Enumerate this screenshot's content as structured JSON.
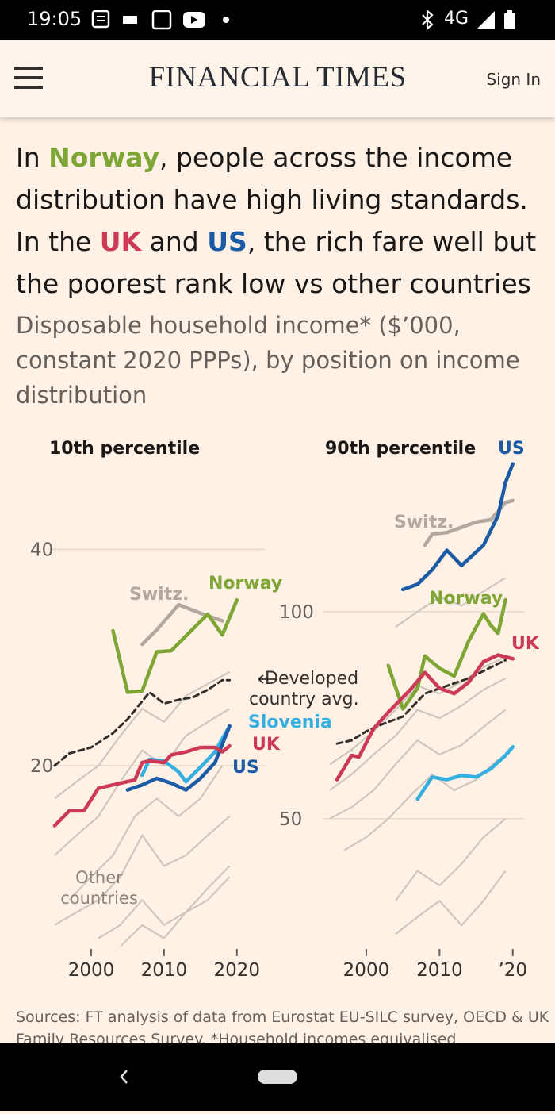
{
  "status_bar": {
    "time": "19:05",
    "network": "4G"
  },
  "header": {
    "brand": "FINANCIAL TIMES",
    "sign_in": "Sign In"
  },
  "headline": [
    [
      {
        "text": "In "
      },
      {
        "text": "Norway",
        "color": "#7ea634"
      },
      {
        "text": ", people across the income"
      }
    ],
    [
      {
        "text": "distribution have high living standards."
      }
    ],
    [
      {
        "text": "In the "
      },
      {
        "text": "UK",
        "color": "#cc3a55"
      },
      {
        "text": " and "
      },
      {
        "text": "US",
        "color": "#1b5ba6"
      },
      {
        "text": ", the rich fare well but"
      }
    ],
    [
      {
        "text": "the poorest rank low vs other countries"
      }
    ]
  ],
  "subtitle": "Disposable household income* ($’000, constant 2020 PPPs), by position on income distribution",
  "chart_data": [
    {
      "type": "line",
      "title": "10th percentile",
      "log_scale": true,
      "xlim": [
        1995,
        2021
      ],
      "xticks": [
        2000,
        2010,
        2020
      ],
      "ylim": [
        11,
        56
      ],
      "yticks": [
        20,
        40
      ],
      "grid": true,
      "annotation": "Other countries",
      "background_color": "#cfc6bd",
      "background_series": [
        {
          "x": [
            1995,
            1998,
            2001,
            2004,
            2007,
            2010,
            2013,
            2016,
            2019
          ],
          "values": [
            18,
            19,
            20,
            22,
            24,
            23,
            25,
            26,
            27
          ]
        },
        {
          "x": [
            1995,
            1998,
            2001,
            2004,
            2007,
            2010,
            2013,
            2016,
            2019
          ],
          "values": [
            15,
            16,
            17,
            19,
            21,
            20,
            22,
            23,
            24
          ]
        },
        {
          "x": [
            1997,
            2000,
            2003,
            2006,
            2009,
            2012,
            2015,
            2018
          ],
          "values": [
            13,
            14,
            15,
            17,
            18,
            17,
            18,
            20
          ]
        },
        {
          "x": [
            1995,
            1998,
            2001,
            2004,
            2007,
            2010,
            2013,
            2016,
            2019
          ],
          "values": [
            12,
            12.5,
            13,
            14,
            16,
            14.5,
            15,
            16,
            17
          ]
        },
        {
          "x": [
            2001,
            2004,
            2007,
            2010,
            2013,
            2016,
            2019
          ],
          "values": [
            11.5,
            12,
            13,
            12,
            12.5,
            13.5,
            14.5
          ]
        },
        {
          "x": [
            2004,
            2007,
            2010,
            2013,
            2016,
            2019
          ],
          "values": [
            11.2,
            12,
            11.5,
            12.5,
            13,
            14
          ]
        }
      ],
      "series": [
        {
          "name": "Switz.",
          "color": "#b3a8a0",
          "x": [
            2007,
            2009,
            2012,
            2015,
            2018
          ],
          "values": [
            29.5,
            30.9,
            33.5,
            32.6,
            31.8
          ]
        },
        {
          "name": "Developed country avg.",
          "color": "#33302e",
          "dashed": true,
          "x": [
            1995,
            1997,
            2000,
            2003,
            2005,
            2008,
            2010,
            2012,
            2014,
            2016,
            2018,
            2019
          ],
          "values": [
            20,
            20.8,
            21.2,
            22.2,
            23.2,
            25.3,
            24.4,
            24.7,
            24.9,
            25.5,
            26.3,
            26.3
          ]
        },
        {
          "name": "Norway",
          "color": "#7ea634",
          "x": [
            2003,
            2005,
            2007,
            2009,
            2011,
            2013,
            2016,
            2018,
            2020
          ],
          "values": [
            30.8,
            25.3,
            25.4,
            28.8,
            28.9,
            30.3,
            32.5,
            30.4,
            34
          ]
        },
        {
          "name": "Slovenia",
          "color": "#35aee0",
          "x": [
            2007,
            2008,
            2010,
            2012,
            2013,
            2015,
            2017,
            2018,
            2019
          ],
          "values": [
            19.4,
            20.4,
            20.3,
            19.6,
            19,
            19.9,
            20.9,
            21.8,
            22.7
          ]
        },
        {
          "name": "US",
          "color": "#1b5ba6",
          "x": [
            2005,
            2007,
            2009,
            2011,
            2013,
            2015,
            2017,
            2019
          ],
          "values": [
            18.5,
            18.8,
            19.2,
            18.9,
            18.5,
            19.2,
            20.2,
            22.7
          ]
        },
        {
          "name": "UK",
          "color": "#cc3a55",
          "x": [
            1995,
            1997,
            1999,
            2001,
            2004,
            2006,
            2007,
            2008,
            2010,
            2011,
            2013,
            2015,
            2017,
            2018,
            2019
          ],
          "values": [
            16.5,
            17.3,
            17.3,
            18.6,
            18.9,
            19.1,
            20.2,
            20.3,
            20.2,
            20.7,
            20.9,
            21.2,
            21.2,
            20.9,
            21.3
          ]
        }
      ]
    },
    {
      "type": "line",
      "title": "90th percentile",
      "log_scale": true,
      "xlim": [
        1995,
        2021
      ],
      "xticks": [
        2000,
        2010,
        {
          "value": 2020,
          "label": "’20"
        }
      ],
      "ylim": [
        32,
        166
      ],
      "yticks": [
        50,
        100
      ],
      "grid": true,
      "background_color": "#cfc6bd",
      "background_series": [
        {
          "x": [
            1995,
            1998,
            2001,
            2004,
            2007,
            2010,
            2013,
            2016,
            2019
          ],
          "values": [
            60,
            63,
            67,
            72,
            78,
            76,
            79,
            83,
            86
          ]
        },
        {
          "x": [
            1995,
            1998,
            2001,
            2004,
            2007,
            2010,
            2013,
            2016,
            2019
          ],
          "values": [
            55,
            58,
            62,
            66,
            72,
            70,
            73,
            77,
            80
          ]
        },
        {
          "x": [
            1995,
            1998,
            2001,
            2004,
            2007,
            2010,
            2013,
            2016,
            2019
          ],
          "values": [
            50,
            52,
            55,
            60,
            65,
            62,
            64,
            68,
            72
          ]
        },
        {
          "x": [
            1997,
            2000,
            2003,
            2006,
            2009,
            2012,
            2015,
            2018
          ],
          "values": [
            45,
            47,
            50,
            54,
            58,
            55,
            57,
            61
          ]
        },
        {
          "x": [
            2004,
            2007,
            2010,
            2013,
            2016,
            2019
          ],
          "values": [
            38,
            42,
            40,
            43,
            47,
            50
          ]
        },
        {
          "x": [
            2004,
            2007,
            2010,
            2013,
            2016,
            2019
          ],
          "values": [
            34,
            36,
            38,
            35,
            38,
            42
          ]
        },
        {
          "x": [
            2004,
            2007,
            2010,
            2013,
            2016,
            2019
          ],
          "values": [
            95,
            100,
            105,
            102,
            107,
            112
          ]
        }
      ],
      "series": [
        {
          "name": "Switz.",
          "color": "#b3a8a0",
          "x": [
            2008,
            2009,
            2011,
            2013,
            2015,
            2017,
            2019,
            2020
          ],
          "values": [
            124.9,
            129.6,
            130.3,
            132.6,
            135,
            136,
            144,
            145
          ]
        },
        {
          "color": "#33302e",
          "dashed": true,
          "x": [
            1996,
            1998,
            2000,
            2002,
            2005,
            2008,
            2011,
            2014,
            2017,
            2019
          ],
          "values": [
            64.3,
            65,
            67,
            68.5,
            70.4,
            76,
            78,
            80,
            83,
            85
          ]
        },
        {
          "color": "#35aee0",
          "x": [
            2007,
            2009,
            2011,
            2013,
            2015,
            2017,
            2019,
            2020
          ],
          "values": [
            53.4,
            57.5,
            57,
            57.8,
            57.5,
            59.1,
            61.8,
            63.6
          ]
        },
        {
          "name": "Norway",
          "color": "#7ea634",
          "x": [
            2003,
            2005,
            2007,
            2008,
            2010,
            2012,
            2014,
            2016,
            2017,
            2018,
            2019
          ],
          "values": [
            83.5,
            72.2,
            77.4,
            86.2,
            82.7,
            80.6,
            90.7,
            99.3,
            95.5,
            93,
            104
          ]
        },
        {
          "name": "US",
          "color": "#1b5ba6",
          "x": [
            2005,
            2007,
            2009,
            2011,
            2013,
            2016,
            2018,
            2019,
            2020
          ],
          "values": [
            107.7,
            109.6,
            115,
            122.8,
            116.7,
            124.9,
            138,
            154,
            164
          ]
        },
        {
          "name": "UK",
          "color": "#cc3a55",
          "x": [
            1996,
            1998,
            1999,
            2001,
            2003,
            2006,
            2008,
            2010,
            2012,
            2014,
            2016,
            2018,
            2020
          ],
          "values": [
            57,
            61.8,
            61.5,
            67.6,
            71.4,
            77,
            81.6,
            77.4,
            76,
            79,
            84.6,
            86.5,
            85.4
          ]
        }
      ]
    }
  ],
  "source": "Sources: FT analysis of data from Eurostat EU-SILC survey, OECD & UK Family Resources Survey. *Household incomes equivalised"
}
